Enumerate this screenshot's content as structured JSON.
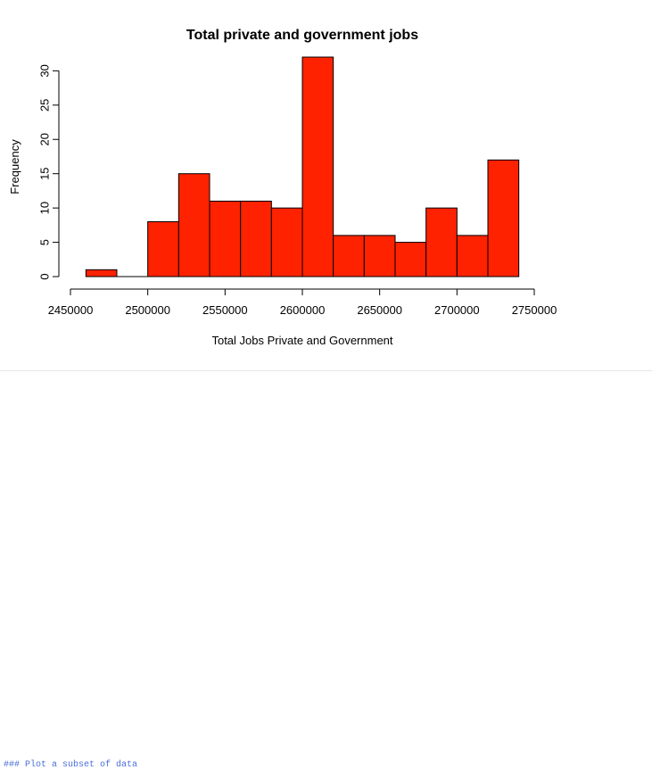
{
  "chart_data": {
    "type": "bar",
    "title": "Total private and government jobs",
    "xlabel": "Total Jobs Private and Government",
    "ylabel": "Frequency",
    "bin_edges": [
      2460000,
      2480000,
      2500000,
      2520000,
      2540000,
      2560000,
      2580000,
      2600000,
      2620000,
      2640000,
      2660000,
      2680000,
      2700000,
      2720000,
      2740000
    ],
    "values": [
      1,
      0,
      8,
      15,
      11,
      11,
      10,
      32,
      6,
      6,
      5,
      10,
      6,
      17
    ],
    "xlim": [
      2450000,
      2750000
    ],
    "ylim": [
      0,
      32
    ],
    "x_ticks": [
      2450000,
      2500000,
      2550000,
      2600000,
      2650000,
      2700000,
      2750000
    ],
    "x_tick_labels": [
      "2450000",
      "2500000",
      "2550000",
      "2600000",
      "2650000",
      "2700000",
      "2750000"
    ],
    "y_ticks": [
      0,
      5,
      10,
      15,
      20,
      25,
      30
    ],
    "y_tick_labels": [
      "0",
      "5",
      "10",
      "15",
      "20",
      "25",
      "30"
    ],
    "bar_color": "#ff2200",
    "bar_border_color": "#000000",
    "grid": false,
    "legend": "none"
  },
  "footer": {
    "code_text": "### Plot a subset of data"
  }
}
